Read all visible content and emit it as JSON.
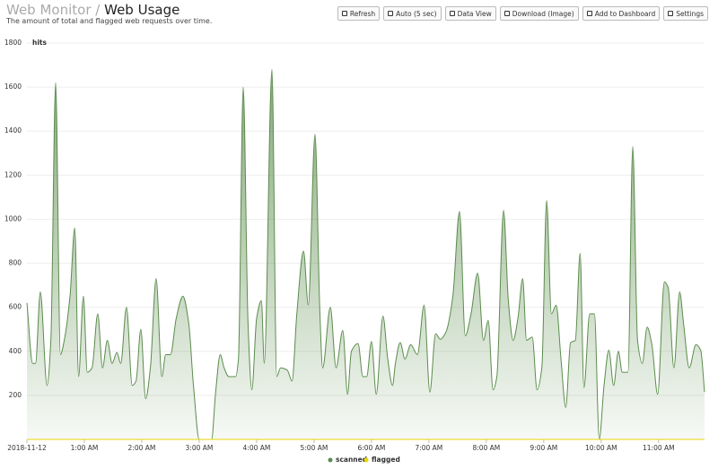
{
  "header": {
    "parent": "Web Monitor",
    "separator": "/",
    "title": "Web Usage",
    "subtitle": "The amount of total and flagged web requests over time."
  },
  "toolbar": [
    "Refresh",
    "Auto (5 sec)",
    "Data View",
    "Download (Image)",
    "Add to Dashboard",
    "Settings"
  ],
  "chart_data": {
    "type": "area",
    "y_label": "hits",
    "x": [
      0,
      6,
      9,
      14,
      21,
      25,
      30,
      35,
      39,
      45,
      50,
      54,
      59,
      63,
      68,
      74,
      79,
      84,
      89,
      94,
      98,
      104,
      110,
      114,
      119,
      124,
      129,
      135,
      141,
      145,
      150,
      156,
      163,
      169,
      174,
      180,
      186,
      193,
      197,
      202,
      206,
      211,
      218,
      221,
      226,
      231,
      235,
      240,
      245,
      248,
      256,
      261,
      265,
      272,
      277,
      282,
      289,
      294,
      301,
      306,
      309,
      317,
      323,
      330,
      335,
      339,
      346,
      351,
      355,
      360,
      365,
      372,
      377,
      382,
      385,
      390,
      395,
      401,
      408,
      415,
      421,
      427,
      432,
      438,
      445,
      452,
      458,
      464,
      471,
      477,
      482,
      487,
      491,
      498,
      503,
      508,
      513,
      518,
      522,
      528,
      533,
      538,
      543,
      548,
      553,
      558,
      563,
      568,
      573,
      578,
      582,
      588,
      593,
      598,
      603,
      608,
      613,
      618,
      622,
      628,
      633,
      638,
      643,
      648,
      653,
      659,
      666,
      670,
      676,
      682,
      686,
      692,
      699,
      704,
      708
    ],
    "series": [
      {
        "name": "scanned",
        "color": "#5b8c4c",
        "values": [
          620,
          345,
          345,
          670,
          245,
          450,
          1620,
          385,
          450,
          650,
          960,
          285,
          650,
          305,
          325,
          570,
          325,
          450,
          345,
          395,
          345,
          600,
          245,
          265,
          500,
          185,
          325,
          730,
          285,
          385,
          385,
          550,
          650,
          530,
          245,
          0,
          0,
          0,
          205,
          385,
          325,
          285,
          285,
          365,
          1600,
          530,
          225,
          550,
          630,
          345,
          1680,
          285,
          325,
          315,
          265,
          570,
          855,
          610,
          1385,
          590,
          325,
          600,
          325,
          495,
          205,
          400,
          435,
          285,
          285,
          445,
          205,
          560,
          365,
          245,
          345,
          440,
          365,
          430,
          385,
          610,
          215,
          480,
          455,
          490,
          650,
          1035,
          470,
          570,
          755,
          450,
          540,
          225,
          285,
          1040,
          630,
          450,
          550,
          730,
          450,
          465,
          225,
          325,
          1085,
          570,
          610,
          365,
          145,
          440,
          450,
          845,
          235,
          570,
          570,
          0,
          245,
          405,
          245,
          400,
          305,
          305,
          1330,
          450,
          345,
          510,
          430,
          205,
          715,
          690,
          325,
          670,
          530,
          325,
          430,
          405,
          215
        ]
      },
      {
        "name": "flagged",
        "color": "#e6d600",
        "values": [
          0,
          0,
          0,
          0,
          0,
          0,
          0,
          0,
          0,
          0,
          0,
          0,
          0,
          0,
          0,
          0,
          0,
          0,
          0,
          0,
          0,
          0,
          0,
          0,
          0,
          0,
          0,
          0,
          0,
          0,
          0,
          0,
          0,
          0,
          0,
          0,
          0,
          0,
          0,
          0,
          0,
          0,
          0,
          0,
          0,
          0,
          0,
          0,
          0,
          0,
          0,
          0,
          0,
          0,
          0,
          0,
          0,
          0,
          0,
          0,
          0,
          0,
          0,
          0,
          0,
          0,
          0,
          0,
          0,
          0,
          0,
          0,
          0,
          0,
          0,
          0,
          0,
          0,
          0,
          0,
          0,
          0,
          0,
          0,
          0,
          0,
          0,
          0,
          0,
          0,
          0,
          0,
          0,
          0,
          0,
          0,
          0,
          0,
          0,
          0,
          0,
          0,
          0,
          0,
          0,
          0,
          0,
          0,
          0,
          0,
          0,
          0,
          0,
          0,
          0,
          0,
          0,
          0,
          0,
          0,
          0,
          0,
          0,
          0,
          0,
          0,
          0,
          0,
          0,
          0,
          0,
          0,
          0,
          0,
          0
        ]
      }
    ],
    "xlim": [
      0,
      708
    ],
    "xticks": [
      {
        "value": 0,
        "label": "2018-11-12"
      },
      {
        "value": 60,
        "label": "1:00 AM"
      },
      {
        "value": 120,
        "label": "2:00 AM"
      },
      {
        "value": 180,
        "label": "3:00 AM"
      },
      {
        "value": 240,
        "label": "4:00 AM"
      },
      {
        "value": 300,
        "label": "5:00 AM"
      },
      {
        "value": 360,
        "label": "6:00 AM"
      },
      {
        "value": 420,
        "label": "7:00 AM"
      },
      {
        "value": 480,
        "label": "8:00 AM"
      },
      {
        "value": 540,
        "label": "9:00 AM"
      },
      {
        "value": 600,
        "label": "10:00 AM"
      },
      {
        "value": 660,
        "label": "11:00 AM"
      }
    ],
    "ylim": [
      0,
      1800
    ],
    "yticks": [
      200,
      400,
      600,
      800,
      1000,
      1200,
      1400,
      1600,
      1800
    ],
    "grid": true
  }
}
